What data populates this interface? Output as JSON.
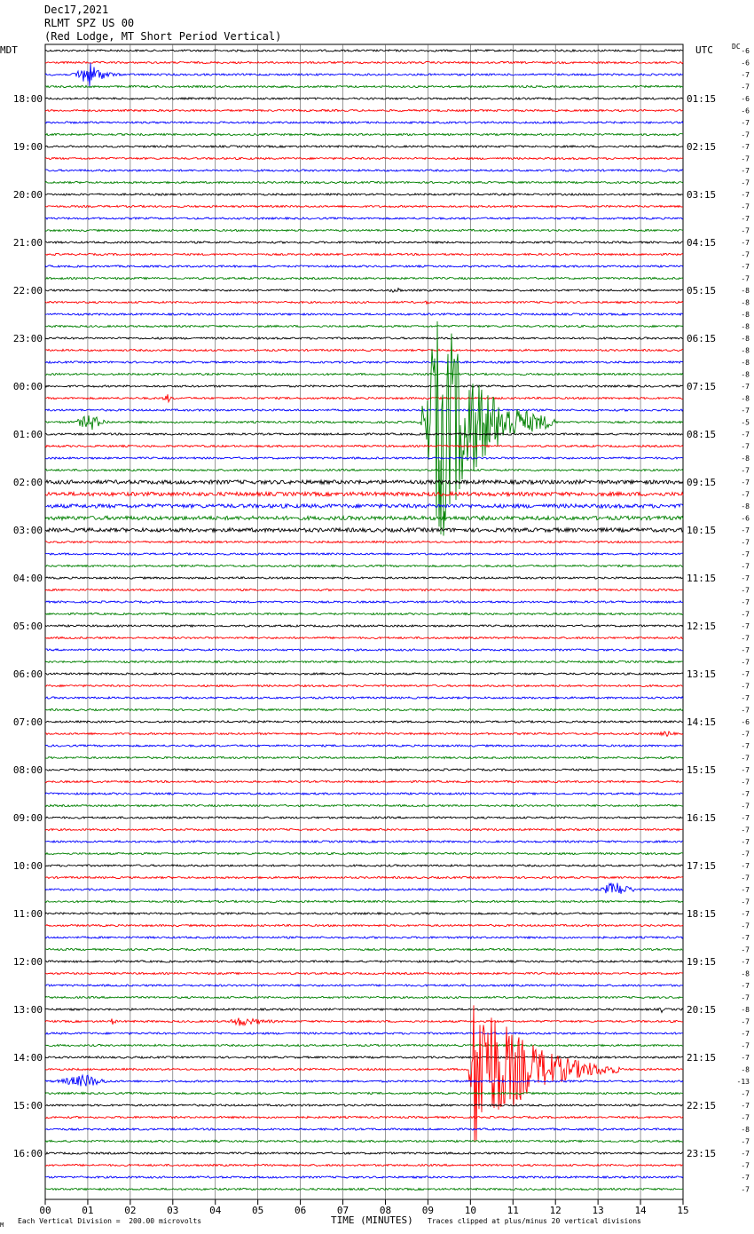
{
  "header": {
    "date": "Dec17,2021",
    "station": "RLMT SPZ US 00",
    "location": "(Red Lodge, MT Short Period Vertical)"
  },
  "axis": {
    "left_label": "MDT",
    "right_label": "UTC",
    "dc_label": "DC",
    "xlabel": "TIME (MINUTES)",
    "x_ticks": [
      "00",
      "01",
      "02",
      "03",
      "04",
      "05",
      "06",
      "07",
      "08",
      "09",
      "10",
      "11",
      "12",
      "13",
      "14",
      "15"
    ]
  },
  "footer": {
    "scale_note": "Each Vertical Division =  200.00 microvolts",
    "clip_note": "Traces clipped at plus/minus 20 vertical divisions",
    "mark": "M"
  },
  "colors": {
    "trace_cycle": [
      "#000000",
      "#ff0000",
      "#0000ff",
      "#008000"
    ],
    "grid": "#000000"
  },
  "chart_data": {
    "type": "line",
    "title": "RLMT SPZ US 00",
    "x_range_minutes": [
      0,
      15
    ],
    "trace_count": 96,
    "trace_interval_minutes": 15,
    "left_hour_labels": [
      {
        "trace": 4,
        "label": "18:00"
      },
      {
        "trace": 8,
        "label": "19:00"
      },
      {
        "trace": 12,
        "label": "20:00"
      },
      {
        "trace": 16,
        "label": "21:00"
      },
      {
        "trace": 20,
        "label": "22:00"
      },
      {
        "trace": 24,
        "label": "23:00"
      },
      {
        "trace": 28,
        "label": "00:00"
      },
      {
        "trace": 32,
        "label": "01:00"
      },
      {
        "trace": 36,
        "label": "02:00"
      },
      {
        "trace": 40,
        "label": "03:00"
      },
      {
        "trace": 44,
        "label": "04:00"
      },
      {
        "trace": 48,
        "label": "05:00"
      },
      {
        "trace": 52,
        "label": "06:00"
      },
      {
        "trace": 56,
        "label": "07:00"
      },
      {
        "trace": 60,
        "label": "08:00"
      },
      {
        "trace": 64,
        "label": "09:00"
      },
      {
        "trace": 68,
        "label": "10:00"
      },
      {
        "trace": 72,
        "label": "11:00"
      },
      {
        "trace": 76,
        "label": "12:00"
      },
      {
        "trace": 80,
        "label": "13:00"
      },
      {
        "trace": 84,
        "label": "14:00"
      },
      {
        "trace": 88,
        "label": "15:00"
      },
      {
        "trace": 92,
        "label": "16:00"
      }
    ],
    "right_utc_labels": [
      {
        "trace": 4,
        "label": "01:15"
      },
      {
        "trace": 8,
        "label": "02:15"
      },
      {
        "trace": 12,
        "label": "03:15"
      },
      {
        "trace": 16,
        "label": "04:15"
      },
      {
        "trace": 20,
        "label": "05:15"
      },
      {
        "trace": 24,
        "label": "06:15"
      },
      {
        "trace": 28,
        "label": "07:15"
      },
      {
        "trace": 32,
        "label": "08:15"
      },
      {
        "trace": 36,
        "label": "09:15"
      },
      {
        "trace": 40,
        "label": "10:15"
      },
      {
        "trace": 44,
        "label": "11:15"
      },
      {
        "trace": 48,
        "label": "12:15"
      },
      {
        "trace": 52,
        "label": "13:15"
      },
      {
        "trace": 56,
        "label": "14:15"
      },
      {
        "trace": 60,
        "label": "15:15"
      },
      {
        "trace": 64,
        "label": "16:15"
      },
      {
        "trace": 68,
        "label": "17:15"
      },
      {
        "trace": 72,
        "label": "18:15"
      },
      {
        "trace": 76,
        "label": "19:15"
      },
      {
        "trace": 80,
        "label": "20:15"
      },
      {
        "trace": 84,
        "label": "21:15"
      },
      {
        "trace": 88,
        "label": "22:15"
      },
      {
        "trace": 92,
        "label": "23:15"
      }
    ],
    "dc_offsets": [
      "-6",
      "-6",
      "-7",
      "-7",
      "-6",
      "-6",
      "-7",
      "-7",
      "-7",
      "-7",
      "-7",
      "-7",
      "-7",
      "-7",
      "-7",
      "-7",
      "-7",
      "-7",
      "-7",
      "-7",
      "-8",
      "-8",
      "-8",
      "-8",
      "-8",
      "-8",
      "-8",
      "-8",
      "-7",
      "-8",
      "-7",
      "-5",
      "-7",
      "-7",
      "-8",
      "-7",
      "-7",
      "-7",
      "-8",
      "-6",
      "-7",
      "-7",
      "-7",
      "-7",
      "-7",
      "-7",
      "-7",
      "-7",
      "-7",
      "-7",
      "-7",
      "-7",
      "-7",
      "-7",
      "-7",
      "-7",
      "-6",
      "-7",
      "-7",
      "-7",
      "-7",
      "-7",
      "-7",
      "-7",
      "-7",
      "-7",
      "-7",
      "-7",
      "-7",
      "-7",
      "-7",
      "-7",
      "-7",
      "-7",
      "-7",
      "-7",
      "-7",
      "-8",
      "-7",
      "-7",
      "-8",
      "-7",
      "-7",
      "-7",
      "-7",
      "-8",
      "-13",
      "-7",
      "-7",
      "-7",
      "-8",
      "-7",
      "-7",
      "-7",
      "-7",
      "-7"
    ],
    "events": [
      {
        "trace": 2,
        "start_min": 0.6,
        "peak_min": 1.05,
        "end_min": 2.0,
        "amp": 14
      },
      {
        "trace": 20,
        "start_min": 8.0,
        "peak_min": 8.3,
        "end_min": 8.5,
        "amp": 4
      },
      {
        "trace": 21,
        "start_min": 8.9,
        "peak_min": 9.0,
        "end_min": 9.1,
        "amp": 3
      },
      {
        "trace": 29,
        "start_min": 2.7,
        "peak_min": 2.9,
        "end_min": 3.2,
        "amp": 5
      },
      {
        "trace": 31,
        "start_min": 8.8,
        "peak_min": 9.3,
        "end_min": 12.0,
        "amp": 140
      },
      {
        "trace": 31,
        "start_min": 0.6,
        "peak_min": 1.1,
        "end_min": 1.8,
        "amp": 10
      },
      {
        "trace": 57,
        "start_min": 14.3,
        "peak_min": 14.7,
        "end_min": 15.0,
        "amp": 4
      },
      {
        "trace": 70,
        "start_min": 13.0,
        "peak_min": 13.4,
        "end_min": 14.4,
        "amp": 10
      },
      {
        "trace": 80,
        "start_min": 14.4,
        "peak_min": 14.5,
        "end_min": 14.6,
        "amp": 4
      },
      {
        "trace": 81,
        "start_min": 1.5,
        "peak_min": 1.6,
        "end_min": 1.8,
        "amp": 5
      },
      {
        "trace": 81,
        "start_min": 4.3,
        "peak_min": 4.5,
        "end_min": 6.5,
        "amp": 6
      },
      {
        "trace": 85,
        "start_min": 9.95,
        "peak_min": 10.1,
        "end_min": 13.5,
        "amp": 100
      },
      {
        "trace": 86,
        "start_min": 0.1,
        "peak_min": 1.0,
        "end_min": 2.0,
        "amp": 8
      }
    ],
    "noisy_traces": [
      36,
      37,
      38,
      39,
      40
    ]
  }
}
